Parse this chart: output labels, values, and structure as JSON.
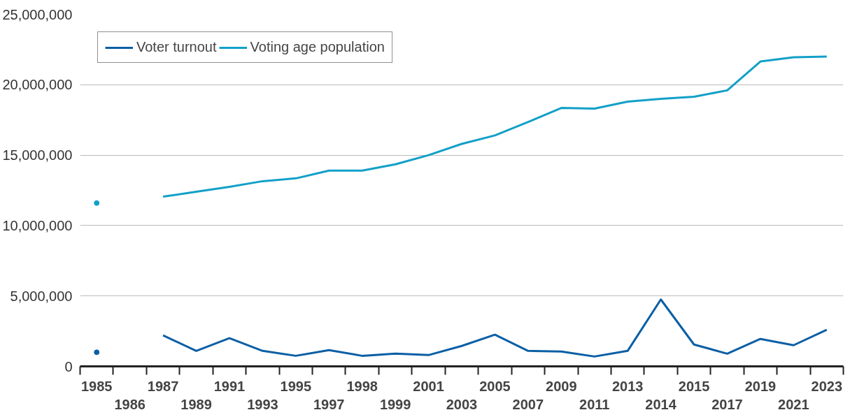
{
  "chart_data": {
    "type": "line",
    "categories": [
      "1985",
      "1986",
      "1987",
      "1989",
      "1991",
      "1993",
      "1995",
      "1997",
      "1998",
      "1999",
      "2001",
      "2003",
      "2005",
      "2007",
      "2009",
      "2011",
      "2013",
      "2014",
      "2015",
      "2017",
      "2019",
      "2021",
      "2023"
    ],
    "series": [
      {
        "name": "Voter turnout",
        "color": "#0b5fa5",
        "values": [
          1000000,
          null,
          2200000,
          1100000,
          2000000,
          1100000,
          750000,
          1150000,
          750000,
          900000,
          800000,
          1450000,
          2250000,
          1100000,
          1050000,
          700000,
          1100000,
          4750000,
          1550000,
          900000,
          1950000,
          1500000,
          2600000
        ]
      },
      {
        "name": "Voting age population",
        "color": "#12a0c8",
        "values": [
          11600000,
          null,
          12050000,
          12400000,
          12750000,
          13150000,
          13350000,
          13900000,
          13900000,
          14350000,
          15000000,
          15800000,
          16400000,
          17350000,
          18350000,
          18300000,
          18800000,
          19000000,
          19150000,
          19600000,
          21650000,
          21950000,
          22000000
        ]
      }
    ],
    "ylim": [
      0,
      25000000
    ],
    "yticks": [
      {
        "value": 0,
        "label": "0"
      },
      {
        "value": 5000000,
        "label": "5,000,000"
      },
      {
        "value": 10000000,
        "label": "10,000,000"
      },
      {
        "value": 15000000,
        "label": "15,000,000"
      },
      {
        "value": 20000000,
        "label": "20,000,000"
      },
      {
        "value": 25000000,
        "label": "25,000,000"
      }
    ],
    "grid": "y",
    "legend": "top left",
    "line_style": "solid",
    "marker": "none"
  }
}
